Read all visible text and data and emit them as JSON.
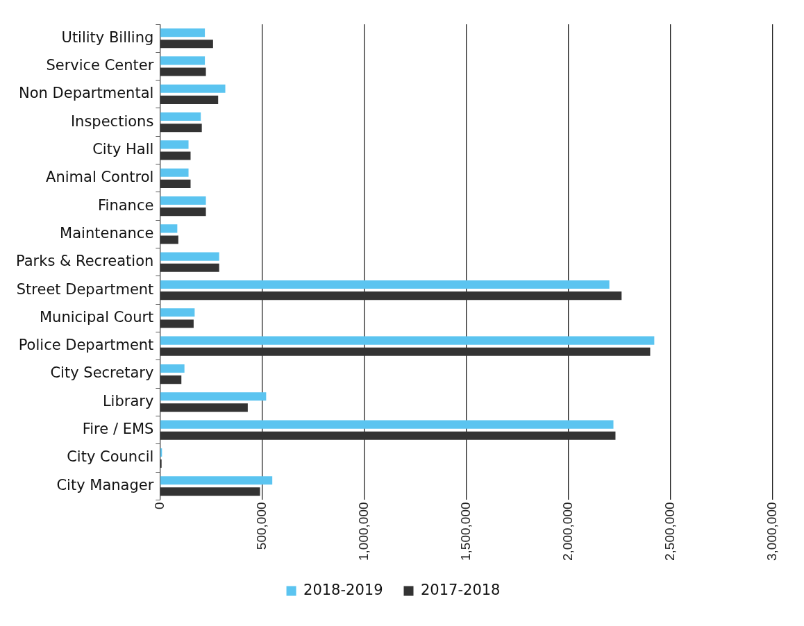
{
  "chart_data": {
    "type": "bar",
    "orientation": "horizontal",
    "categories": [
      "Utility Billing",
      "Service Center",
      "Non Departmental",
      "Inspections",
      "City Hall",
      "Animal Control",
      "Finance",
      "Maintenance",
      "Parks & Recreation",
      "Street Department",
      "Municipal Court",
      "Police Department",
      "City Secretary",
      "Library",
      "Fire / EMS",
      "City Council",
      "City Manager"
    ],
    "series": [
      {
        "name": "2018-2019",
        "color": "#5bc4f0",
        "values": [
          220000,
          220000,
          320000,
          200000,
          140000,
          140000,
          225000,
          85000,
          290000,
          2200000,
          170000,
          2420000,
          120000,
          520000,
          2220000,
          10000,
          550000
        ]
      },
      {
        "name": "2017-2018",
        "color": "#333333",
        "values": [
          260000,
          225000,
          285000,
          205000,
          150000,
          150000,
          225000,
          90000,
          290000,
          2260000,
          165000,
          2400000,
          105000,
          430000,
          2230000,
          8000,
          490000
        ]
      }
    ],
    "xlim": [
      0,
      3000000
    ],
    "xticks": [
      {
        "value": 0,
        "label": "0"
      },
      {
        "value": 500000,
        "label": "500,000"
      },
      {
        "value": 1000000,
        "label": "1,000,000"
      },
      {
        "value": 1500000,
        "label": "1,500,000"
      },
      {
        "value": 2000000,
        "label": "2,000,000"
      },
      {
        "value": 2500000,
        "label": "2,500,000"
      },
      {
        "value": 3000000,
        "label": "3,000,000"
      }
    ],
    "grid": "x",
    "legend": "bottom"
  }
}
